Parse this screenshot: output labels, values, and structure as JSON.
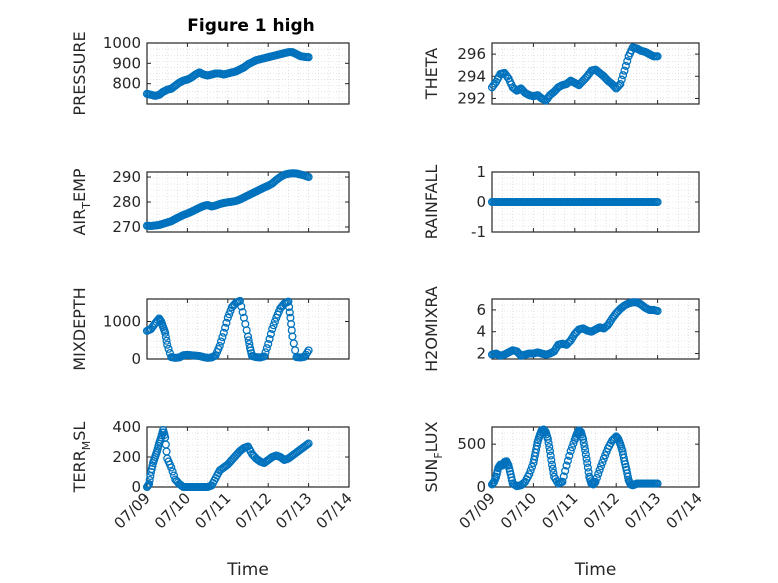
{
  "figure": {
    "title": "Figure 1 high",
    "marker_color": "#0072BD",
    "x_tick_labels": [
      "07/09",
      "07/10",
      "07/11",
      "07/12",
      "07/13",
      "07/14"
    ]
  },
  "chart_data": [
    {
      "id": "pressure",
      "type": "scatter",
      "title": "Figure 1 high",
      "ylabel": "PRESSURE",
      "xlabel": "",
      "xlim_days": [
        9,
        14
      ],
      "ylim": [
        700,
        1000
      ],
      "yticks": [
        800,
        900,
        1000
      ],
      "grid": true,
      "x_day": [
        9.0,
        9.1,
        9.2,
        9.3,
        9.4,
        9.5,
        9.6,
        9.7,
        9.8,
        9.9,
        10.0,
        10.1,
        10.2,
        10.3,
        10.4,
        10.5,
        10.6,
        10.7,
        10.8,
        10.9,
        11.0,
        11.1,
        11.2,
        11.3,
        11.4,
        11.5,
        11.6,
        11.7,
        11.8,
        11.9,
        12.0,
        12.1,
        12.2,
        12.3,
        12.4,
        12.5,
        12.6,
        12.7,
        12.8,
        12.9,
        13.0
      ],
      "y": [
        750,
        745,
        740,
        745,
        760,
        770,
        775,
        790,
        805,
        815,
        820,
        830,
        845,
        855,
        845,
        840,
        845,
        850,
        850,
        845,
        850,
        855,
        860,
        870,
        880,
        895,
        905,
        915,
        920,
        925,
        930,
        935,
        940,
        945,
        950,
        955,
        955,
        945,
        935,
        932,
        930
      ]
    },
    {
      "id": "theta",
      "type": "scatter",
      "ylabel": "THETA",
      "xlabel": "",
      "xlim_days": [
        9,
        14
      ],
      "ylim": [
        291.5,
        297
      ],
      "yticks": [
        292,
        294,
        296
      ],
      "grid": true,
      "x_day": [
        9.0,
        9.1,
        9.2,
        9.3,
        9.4,
        9.5,
        9.6,
        9.7,
        9.8,
        9.9,
        10.0,
        10.1,
        10.2,
        10.3,
        10.4,
        10.5,
        10.6,
        10.7,
        10.8,
        10.9,
        11.0,
        11.1,
        11.2,
        11.3,
        11.4,
        11.5,
        11.6,
        11.7,
        11.8,
        11.9,
        12.0,
        12.1,
        12.2,
        12.3,
        12.4,
        12.5,
        12.6,
        12.7,
        12.8,
        12.9,
        13.0
      ],
      "y": [
        293.0,
        293.5,
        294.2,
        294.3,
        293.8,
        293.0,
        292.7,
        292.9,
        292.5,
        292.3,
        292.2,
        292.3,
        292.0,
        291.8,
        292.3,
        292.6,
        293.0,
        293.2,
        293.3,
        293.6,
        293.4,
        293.2,
        293.6,
        294.0,
        294.5,
        294.6,
        294.3,
        294.0,
        293.6,
        293.3,
        292.9,
        293.3,
        294.5,
        295.8,
        296.6,
        296.5,
        296.3,
        296.2,
        296.0,
        295.8,
        295.8
      ]
    },
    {
      "id": "air_temp",
      "type": "scatter",
      "ylabel": "AIR_TEMP",
      "ylabel_main": "AIR",
      "ylabel_sub": "T",
      "ylabel_tail": "EMP",
      "xlabel": "",
      "xlim_days": [
        9,
        14
      ],
      "ylim": [
        268,
        292
      ],
      "yticks": [
        270,
        280,
        290
      ],
      "grid": true,
      "x_day": [
        9.0,
        9.1,
        9.2,
        9.3,
        9.4,
        9.5,
        9.6,
        9.7,
        9.8,
        9.9,
        10.0,
        10.1,
        10.2,
        10.3,
        10.4,
        10.5,
        10.6,
        10.7,
        10.8,
        10.9,
        11.0,
        11.1,
        11.2,
        11.3,
        11.4,
        11.5,
        11.6,
        11.7,
        11.8,
        11.9,
        12.0,
        12.1,
        12.2,
        12.3,
        12.4,
        12.5,
        12.6,
        12.7,
        12.8,
        12.9,
        13.0
      ],
      "y": [
        270.5,
        270.4,
        270.6,
        270.8,
        271.3,
        271.8,
        272.3,
        273.2,
        274.0,
        274.8,
        275.4,
        276.1,
        276.9,
        277.7,
        278.4,
        278.8,
        278.2,
        278.6,
        279.2,
        279.6,
        279.9,
        280.1,
        280.4,
        281.0,
        281.8,
        282.6,
        283.4,
        284.2,
        285.0,
        285.8,
        286.5,
        287.4,
        288.8,
        290.0,
        290.9,
        291.3,
        291.5,
        291.4,
        291.0,
        290.6,
        290.0
      ]
    },
    {
      "id": "rainfall",
      "type": "scatter",
      "ylabel": "RAINFALL",
      "xlabel": "",
      "xlim_days": [
        9,
        14
      ],
      "ylim": [
        -1,
        1
      ],
      "yticks": [
        -1,
        0,
        1
      ],
      "grid": true,
      "x_day": [
        9.0,
        9.1,
        9.2,
        9.3,
        9.4,
        9.5,
        9.6,
        9.7,
        9.8,
        9.9,
        10.0,
        10.1,
        10.2,
        10.3,
        10.4,
        10.5,
        10.6,
        10.7,
        10.8,
        10.9,
        11.0,
        11.1,
        11.2,
        11.3,
        11.4,
        11.5,
        11.6,
        11.7,
        11.8,
        11.9,
        12.0,
        12.1,
        12.2,
        12.3,
        12.4,
        12.5,
        12.6,
        12.7,
        12.8,
        12.9,
        13.0
      ],
      "y": [
        0,
        0,
        0,
        0,
        0,
        0,
        0,
        0,
        0,
        0,
        0,
        0,
        0,
        0,
        0,
        0,
        0,
        0,
        0,
        0,
        0,
        0,
        0,
        0,
        0,
        0,
        0,
        0,
        0,
        0,
        0,
        0,
        0,
        0,
        0,
        0,
        0,
        0,
        0,
        0,
        0
      ]
    },
    {
      "id": "mixdepth",
      "type": "scatter",
      "ylabel": "MIXDEPTH",
      "xlabel": "",
      "xlim_days": [
        9,
        14
      ],
      "ylim": [
        0,
        1600
      ],
      "yticks": [
        0,
        1000
      ],
      "grid": true,
      "x_day": [
        9.0,
        9.1,
        9.2,
        9.3,
        9.35,
        9.4,
        9.45,
        9.5,
        9.6,
        9.7,
        9.8,
        9.9,
        10.0,
        10.1,
        10.2,
        10.3,
        10.4,
        10.5,
        10.6,
        10.7,
        10.8,
        10.9,
        11.0,
        11.1,
        11.2,
        11.3,
        11.4,
        11.5,
        11.55,
        11.6,
        11.7,
        11.8,
        11.9,
        12.0,
        12.1,
        12.2,
        12.3,
        12.4,
        12.5,
        12.55,
        12.6,
        12.7,
        12.8,
        12.9,
        13.0
      ],
      "y": [
        750,
        800,
        950,
        1080,
        1000,
        850,
        700,
        380,
        50,
        30,
        40,
        100,
        110,
        100,
        90,
        80,
        50,
        30,
        40,
        100,
        350,
        700,
        1100,
        1380,
        1500,
        1550,
        1100,
        600,
        300,
        80,
        50,
        40,
        70,
        400,
        800,
        1100,
        1350,
        1480,
        1530,
        1100,
        600,
        50,
        40,
        60,
        230
      ]
    },
    {
      "id": "h2omixra",
      "type": "scatter",
      "ylabel": "H2OMIXRA",
      "xlabel": "",
      "xlim_days": [
        9,
        14
      ],
      "ylim": [
        1.5,
        7
      ],
      "yticks": [
        2,
        4,
        6
      ],
      "grid": true,
      "x_day": [
        9.0,
        9.1,
        9.2,
        9.3,
        9.4,
        9.5,
        9.6,
        9.7,
        9.8,
        9.9,
        10.0,
        10.1,
        10.2,
        10.3,
        10.4,
        10.5,
        10.6,
        10.7,
        10.8,
        10.9,
        11.0,
        11.1,
        11.2,
        11.3,
        11.4,
        11.5,
        11.6,
        11.7,
        11.8,
        11.9,
        12.0,
        12.1,
        12.2,
        12.3,
        12.4,
        12.5,
        12.6,
        12.7,
        12.8,
        12.9,
        13.0
      ],
      "y": [
        1.9,
        2.0,
        1.8,
        1.9,
        2.1,
        2.3,
        2.2,
        1.8,
        1.9,
        2.0,
        2.0,
        2.1,
        2.0,
        1.9,
        2.0,
        2.2,
        2.8,
        2.9,
        2.8,
        3.2,
        3.8,
        4.2,
        4.3,
        4.1,
        4.0,
        4.2,
        4.4,
        4.3,
        4.6,
        5.2,
        5.7,
        6.1,
        6.4,
        6.6,
        6.7,
        6.7,
        6.5,
        6.2,
        6.0,
        6.0,
        5.9
      ]
    },
    {
      "id": "terr_msl",
      "type": "scatter",
      "ylabel": "TERR_MSL",
      "ylabel_main": "TERR",
      "ylabel_sub": "M",
      "ylabel_tail": "SL",
      "xlabel": "Time",
      "xlim_days": [
        9,
        14
      ],
      "ylim": [
        0,
        400
      ],
      "yticks": [
        0,
        200,
        400
      ],
      "grid": true,
      "x_tick_labels": [
        "07/09",
        "07/10",
        "07/11",
        "07/12",
        "07/13",
        "07/14"
      ],
      "x_day": [
        9.0,
        9.05,
        9.1,
        9.15,
        9.2,
        9.25,
        9.3,
        9.35,
        9.4,
        9.45,
        9.5,
        9.6,
        9.7,
        9.8,
        9.9,
        10.0,
        10.1,
        10.2,
        10.3,
        10.4,
        10.5,
        10.6,
        10.7,
        10.8,
        10.9,
        11.0,
        11.1,
        11.2,
        11.3,
        11.4,
        11.5,
        11.6,
        11.7,
        11.8,
        11.9,
        12.0,
        12.1,
        12.2,
        12.3,
        12.4,
        12.5,
        12.6,
        12.7,
        12.8,
        12.9,
        13.0
      ],
      "y": [
        0,
        20,
        100,
        160,
        200,
        240,
        290,
        330,
        380,
        330,
        190,
        130,
        50,
        20,
        0,
        0,
        0,
        0,
        0,
        0,
        0,
        10,
        60,
        110,
        130,
        150,
        180,
        210,
        240,
        260,
        270,
        220,
        190,
        170,
        160,
        180,
        200,
        210,
        200,
        180,
        190,
        210,
        230,
        250,
        270,
        290
      ]
    },
    {
      "id": "sun_flux",
      "type": "scatter",
      "ylabel": "SUN_FLUX",
      "ylabel_main": "SUN",
      "ylabel_sub": "F",
      "ylabel_tail": "LUX",
      "xlabel": "Time",
      "xlim_days": [
        9,
        14
      ],
      "ylim": [
        0,
        700
      ],
      "yticks": [
        0,
        500
      ],
      "grid": true,
      "x_tick_labels": [
        "07/09",
        "07/10",
        "07/11",
        "07/12",
        "07/13",
        "07/14"
      ],
      "x_day": [
        9.0,
        9.05,
        9.1,
        9.15,
        9.2,
        9.25,
        9.3,
        9.35,
        9.4,
        9.45,
        9.5,
        9.6,
        9.7,
        9.8,
        9.9,
        10.0,
        10.05,
        10.1,
        10.15,
        10.2,
        10.25,
        10.3,
        10.35,
        10.4,
        10.45,
        10.5,
        10.6,
        10.7,
        10.8,
        10.9,
        11.0,
        11.05,
        11.1,
        11.15,
        11.2,
        11.25,
        11.3,
        11.35,
        11.4,
        11.45,
        11.5,
        11.6,
        11.7,
        11.8,
        11.9,
        12.0,
        12.05,
        12.1,
        12.15,
        12.2,
        12.25,
        12.3,
        12.35,
        12.4,
        12.45,
        12.5,
        12.6,
        12.7,
        12.8,
        12.9,
        13.0
      ],
      "y": [
        30,
        60,
        120,
        220,
        260,
        250,
        290,
        300,
        250,
        150,
        40,
        10,
        20,
        60,
        150,
        280,
        400,
        520,
        600,
        660,
        670,
        640,
        560,
        420,
        260,
        120,
        40,
        60,
        250,
        420,
        550,
        620,
        660,
        640,
        560,
        430,
        280,
        120,
        40,
        30,
        60,
        200,
        330,
        450,
        540,
        590,
        560,
        500,
        420,
        300,
        200,
        80,
        30,
        20,
        30,
        40,
        40,
        40,
        40,
        40,
        40
      ]
    }
  ]
}
